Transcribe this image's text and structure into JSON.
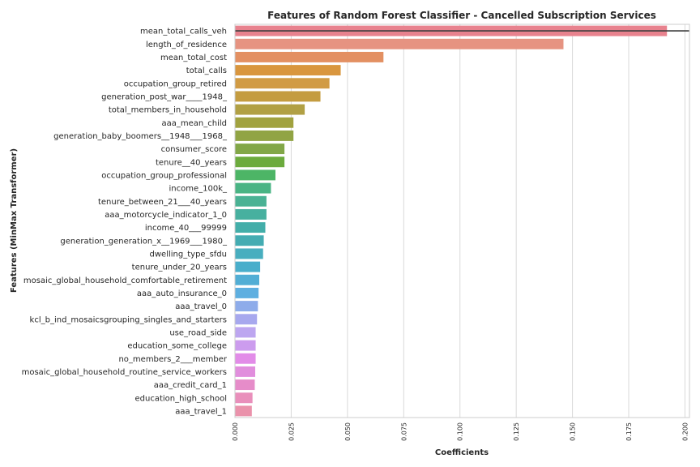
{
  "chart_data": {
    "type": "bar",
    "orientation": "horizontal",
    "title": "Features of Random Forest Classifier - Cancelled Subscription Services",
    "xlabel": "Coefficients",
    "ylabel": "Features (MinMax Transformer)",
    "xlim": [
      0,
      0.202
    ],
    "xticks": [
      "0.000",
      "0.025",
      "0.050",
      "0.075",
      "0.100",
      "0.125",
      "0.150",
      "0.175",
      "0.200"
    ],
    "grid": true,
    "categories": [
      "mean_total_calls_veh",
      "length_of_residence",
      "mean_total_cost",
      "total_calls",
      "occupation_group_retired",
      "generation_post_war____1948_",
      "total_members_in_household",
      "aaa_mean_child",
      "generation_baby_boomers__1948___1968_",
      "consumer_score",
      "tenure__40_years",
      "occupation_group_professional",
      "income_100k_",
      "tenure_between_21___40_years",
      "aaa_motorcycle_indicator_1_0",
      "income_40___99999",
      "generation_generation_x__1969___1980_",
      "dwelling_type_sfdu",
      "tenure_under_20_years",
      "mosaic_global_household_comfortable_retirement",
      "aaa_auto_insurance_0",
      "aaa_travel_0",
      "kcl_b_ind_mosaicsgrouping_singles_and_starters",
      "use_road_side",
      "education_some_college",
      "no_members_2___member",
      "mosaic_global_household_routine_service_workers",
      "aaa_credit_card_1",
      "education_high_school",
      "aaa_travel_1"
    ],
    "values": [
      0.192,
      0.146,
      0.066,
      0.047,
      0.042,
      0.038,
      0.031,
      0.026,
      0.026,
      0.022,
      0.022,
      0.018,
      0.016,
      0.014,
      0.014,
      0.0135,
      0.0128,
      0.0125,
      0.0112,
      0.0108,
      0.0105,
      0.0102,
      0.0098,
      0.0092,
      0.0092,
      0.0092,
      0.009,
      0.0088,
      0.0078,
      0.0075
    ],
    "colors": [
      "#e8828e",
      "#e69381",
      "#e39062",
      "#d9963e",
      "#d19b44",
      "#c49c40",
      "#b1a044",
      "#a1a23f",
      "#91a444",
      "#82a748",
      "#6cab3d",
      "#4db566",
      "#49b484",
      "#4ab294",
      "#47b09f",
      "#43aea9",
      "#44acb2",
      "#48aebf",
      "#49aecb",
      "#52aed5",
      "#5eafe0",
      "#8eacea",
      "#a7a8ee",
      "#bda6f0",
      "#cc9cee",
      "#e28ce8",
      "#e18edd",
      "#e68cc9",
      "#e98fbb",
      "#ea92ab"
    ],
    "error_bar": {
      "category": "mean_total_calls_veh",
      "low": 0.0,
      "high": 0.202
    }
  }
}
